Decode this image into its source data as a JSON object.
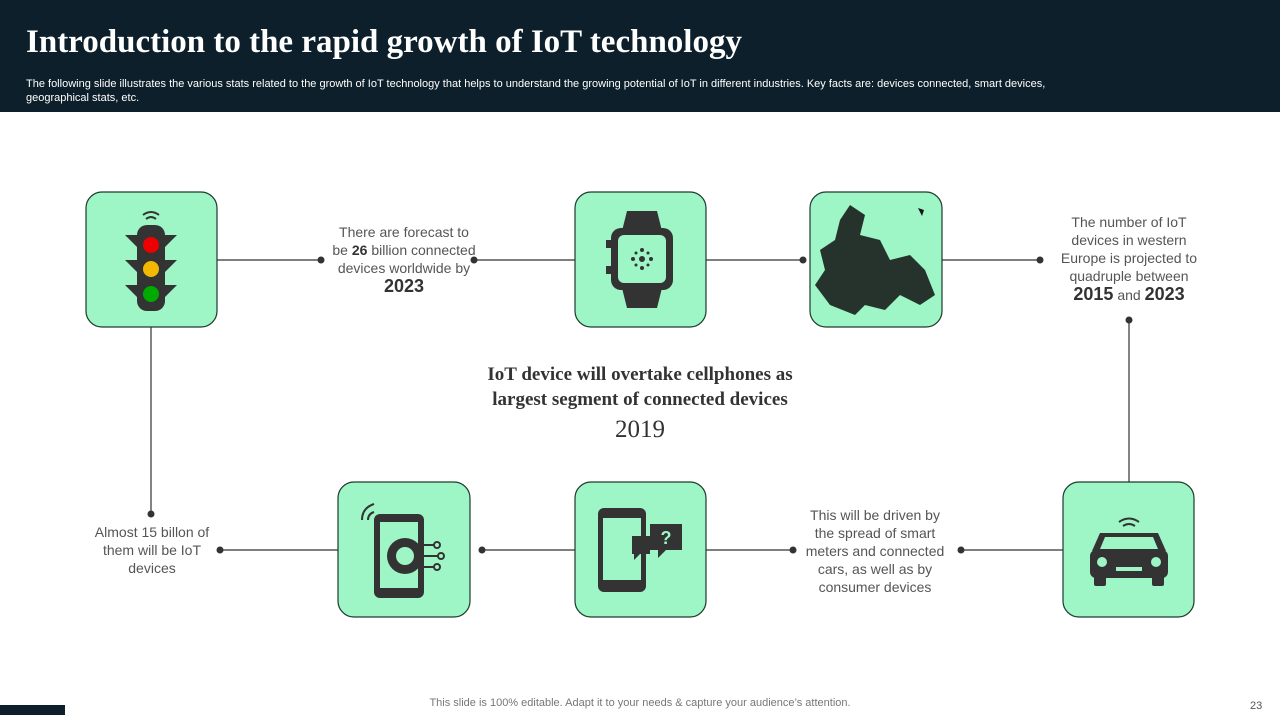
{
  "header": {
    "title": "Introduction to the rapid growth of IoT technology",
    "subtitle": "The following slide illustrates the various stats related to the growth of IoT technology that helps to understand the growing potential of IoT in different industries. Key facts are: devices connected, smart devices, geographical stats, etc."
  },
  "facts": [
    {
      "parts": [
        "There are forecast to be",
        "26",
        "billion connected devices worldwide by",
        "2023"
      ]
    },
    {
      "parts": [
        "The number of IoT devices in western Europe is projected to quadruple between",
        "2015",
        "and",
        "2023"
      ]
    },
    {
      "parts": [
        "This will be driven by the spread of smart meters and connected cars, as well as by consumer devices"
      ]
    },
    {
      "parts": [
        "Almost 15 billon  of them will be IoT devices"
      ]
    }
  ],
  "center": {
    "text": "IoT device will overtake cellphones as largest segment of connected devices",
    "year": "2019"
  },
  "footer": {
    "note": "This slide is 100% editable. Adapt it to your needs & capture your audience’s attention.",
    "page": "23"
  }
}
